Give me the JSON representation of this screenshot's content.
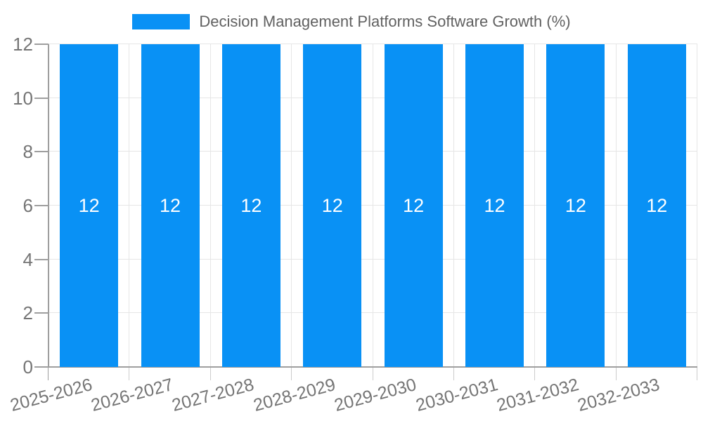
{
  "legend": {
    "label": "Decision Management Platforms Software Growth (%)"
  },
  "chart_data": {
    "type": "bar",
    "title": "Decision Management Platforms Software Growth (%)",
    "categories": [
      "2025-2026",
      "2026-2027",
      "2027-2028",
      "2028-2029",
      "2029-2030",
      "2030-2031",
      "2031-2032",
      "2032-2033"
    ],
    "values": [
      12,
      12,
      12,
      12,
      12,
      12,
      12,
      12
    ],
    "bar_labels": [
      "12",
      "12",
      "12",
      "12",
      "12",
      "12",
      "12",
      "12"
    ],
    "xlabel": "",
    "ylabel": "",
    "ylim": [
      0,
      12
    ],
    "yticks": [
      0,
      2,
      4,
      6,
      8,
      10,
      12
    ],
    "grid": true,
    "legend_position": "top",
    "bar_color": "#0991f5"
  },
  "colors": {
    "bar": "#0991f5",
    "grid": "#e6e6e6",
    "axis_line": "#9e9e9e",
    "minor_tick": "#cccccc",
    "axis_text": "#757575",
    "legend_text": "#616161",
    "bar_label_text": "#ffffff",
    "background": "#ffffff"
  }
}
